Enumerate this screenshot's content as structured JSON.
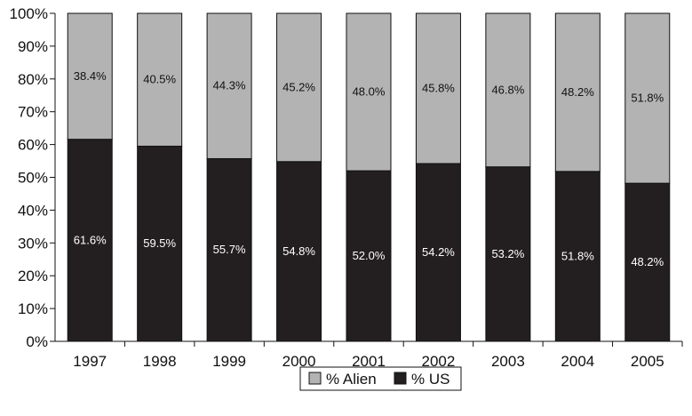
{
  "chart_data": {
    "type": "bar",
    "stacked": true,
    "percent_stacked": true,
    "categories": [
      "1997",
      "1998",
      "1999",
      "2000",
      "2001",
      "2002",
      "2003",
      "2004",
      "2005"
    ],
    "series": [
      {
        "name": "% US",
        "color": "#231f20",
        "values": [
          61.6,
          59.5,
          55.7,
          54.8,
          52.0,
          54.2,
          53.2,
          51.8,
          48.2
        ],
        "labels": [
          "61.6%",
          "59.5%",
          "55.7%",
          "54.8%",
          "52.0%",
          "54.2%",
          "53.2%",
          "51.8%",
          "48.2%"
        ]
      },
      {
        "name": "% Alien",
        "color": "#b3b3b3",
        "values": [
          38.4,
          40.5,
          44.3,
          45.2,
          48.0,
          45.8,
          46.8,
          48.2,
          51.8
        ],
        "labels": [
          "38.4%",
          "40.5%",
          "44.3%",
          "45.2%",
          "48.0%",
          "45.8%",
          "46.8%",
          "48.2%",
          "51.8%"
        ]
      }
    ],
    "ylim": [
      0,
      100
    ],
    "yticks": [
      0,
      10,
      20,
      30,
      40,
      50,
      60,
      70,
      80,
      90,
      100
    ],
    "ytick_labels": [
      "0%",
      "10%",
      "20%",
      "30%",
      "40%",
      "50%",
      "60%",
      "70%",
      "80%",
      "90%",
      "100%"
    ],
    "grid": false,
    "legend_position": "bottom",
    "legend": [
      {
        "label": "% Alien",
        "color": "#b3b3b3"
      },
      {
        "label": "% US",
        "color": "#231f20"
      }
    ]
  }
}
